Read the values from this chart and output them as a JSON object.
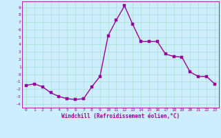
{
  "x": [
    0,
    1,
    2,
    3,
    4,
    5,
    6,
    7,
    8,
    9,
    10,
    11,
    12,
    13,
    14,
    15,
    16,
    17,
    18,
    19,
    20,
    21,
    22,
    23
  ],
  "y": [
    -1.5,
    -1.3,
    -1.7,
    -2.5,
    -3.0,
    -3.3,
    -3.4,
    -3.3,
    -1.7,
    -0.3,
    5.2,
    7.3,
    9.2,
    6.7,
    4.4,
    4.4,
    4.4,
    2.7,
    2.4,
    2.3,
    0.3,
    -0.3,
    -0.3,
    -1.3
  ],
  "line_color": "#990099",
  "marker_color": "#990099",
  "bg_color": "#cceeff",
  "grid_color": "#aaddcc",
  "xlabel": "Windchill (Refroidissement éolien,°C)",
  "yticks": [
    -4,
    -3,
    -2,
    -1,
    0,
    1,
    2,
    3,
    4,
    5,
    6,
    7,
    8,
    9
  ],
  "xticks": [
    0,
    1,
    2,
    3,
    4,
    5,
    6,
    7,
    8,
    9,
    10,
    11,
    12,
    13,
    14,
    15,
    16,
    17,
    18,
    19,
    20,
    21,
    22,
    23
  ],
  "ylim": [
    -4.5,
    9.8
  ],
  "xlim": [
    -0.5,
    23.5
  ],
  "xlabel_color": "#990099",
  "tick_color": "#990099",
  "spine_color": "#990099",
  "marker_size": 2.5,
  "line_width": 1.0
}
